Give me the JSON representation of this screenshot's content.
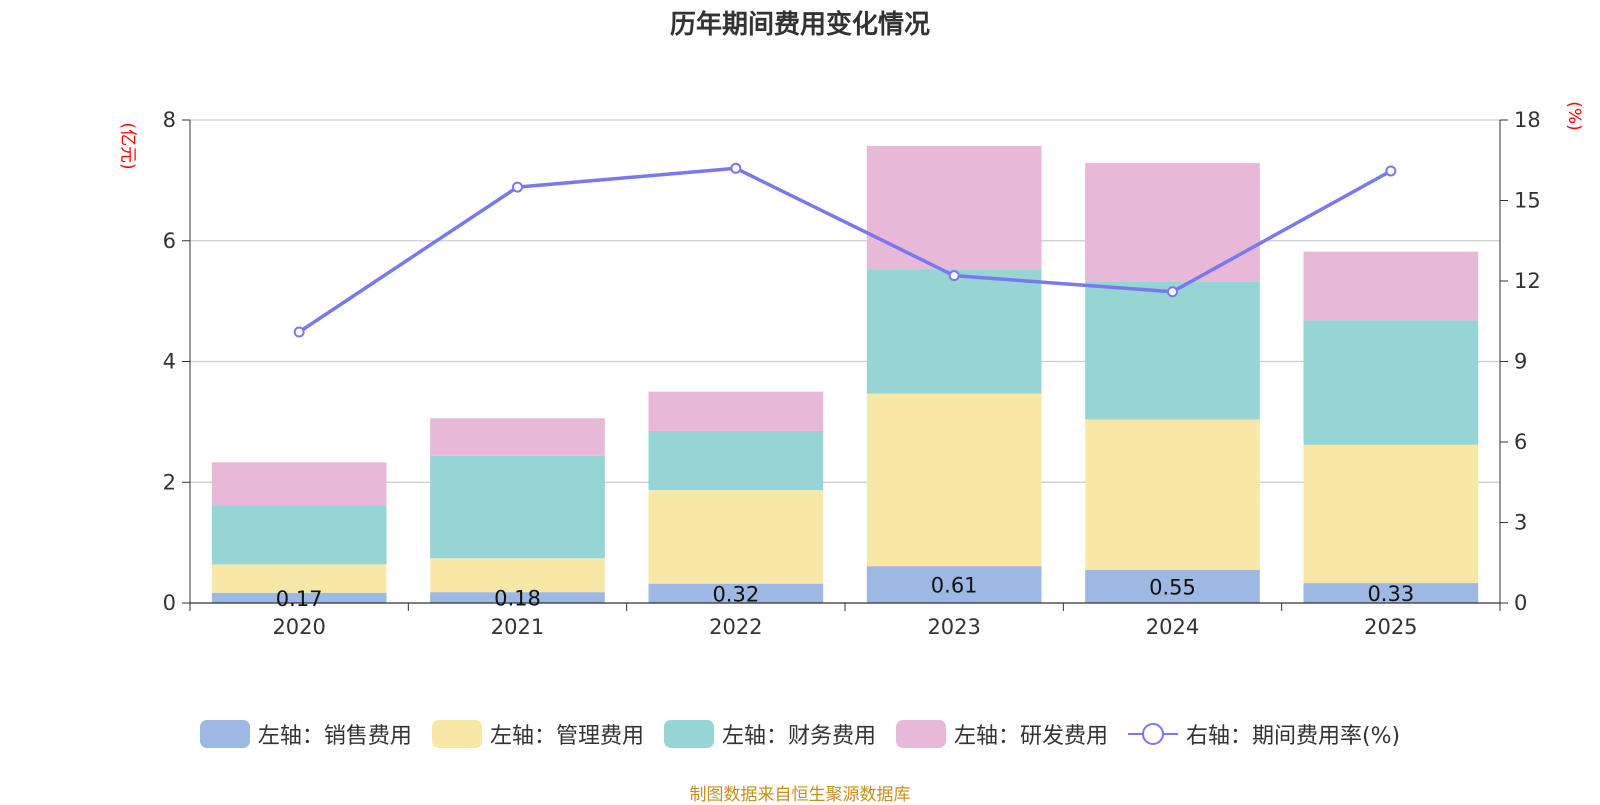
{
  "title": "历年期间费用变化情况",
  "left_unit": "(亿元)",
  "right_unit": "(%)",
  "source": "制图数据来自恒生聚源数据库",
  "colors": {
    "sales": "#9db8e2",
    "admin": "#f8e8a8",
    "finance": "#97d4d4",
    "rd": "#e8b8d8",
    "rate": "#7b78ee"
  },
  "legend": [
    {
      "label": "左轴：销售费用",
      "color": "#9db8e2",
      "kind": "bar"
    },
    {
      "label": "左轴：管理费用",
      "color": "#f8e8a8",
      "kind": "bar"
    },
    {
      "label": "左轴：财务费用",
      "color": "#97d4d4",
      "kind": "bar"
    },
    {
      "label": "左轴：研发费用",
      "color": "#e8b8d8",
      "kind": "bar"
    },
    {
      "label": "右轴：期间费用率(%)",
      "color": "#7b78ee",
      "kind": "line"
    }
  ],
  "chart_data": {
    "type": "bar",
    "stacked": true,
    "title": "历年期间费用变化情况",
    "categories": [
      "2020",
      "2021",
      "2022",
      "2023",
      "2024",
      "2025"
    ],
    "series": [
      {
        "name": "左轴：销售费用",
        "axis": "left",
        "values": [
          0.17,
          0.18,
          0.32,
          0.61,
          0.55,
          0.33
        ],
        "labels": [
          "0.17",
          "0.18",
          "0.32",
          "0.61",
          "0.55",
          "0.33"
        ]
      },
      {
        "name": "左轴：管理费用",
        "axis": "left",
        "values": [
          0.47,
          0.56,
          1.55,
          2.86,
          2.49,
          2.29
        ]
      },
      {
        "name": "左轴：财务费用",
        "axis": "left",
        "values": [
          0.98,
          1.7,
          0.98,
          2.06,
          2.29,
          2.06
        ]
      },
      {
        "name": "左轴：研发费用",
        "axis": "left",
        "values": [
          0.71,
          0.62,
          0.65,
          2.04,
          1.96,
          1.14
        ]
      },
      {
        "name": "右轴：期间费用率(%)",
        "axis": "right",
        "type": "line",
        "values": [
          10.1,
          15.5,
          16.2,
          12.2,
          11.6,
          16.1
        ]
      }
    ],
    "left_axis": {
      "label": "(亿元)",
      "min": 0,
      "max": 8,
      "ticks": [
        "0",
        "2",
        "4",
        "6",
        "8"
      ]
    },
    "right_axis": {
      "label": "(%)",
      "min": 0,
      "max": 18,
      "ticks": [
        "0",
        "3",
        "6",
        "9",
        "12",
        "15",
        "18"
      ]
    },
    "grid": true,
    "legend_position": "bottom"
  }
}
